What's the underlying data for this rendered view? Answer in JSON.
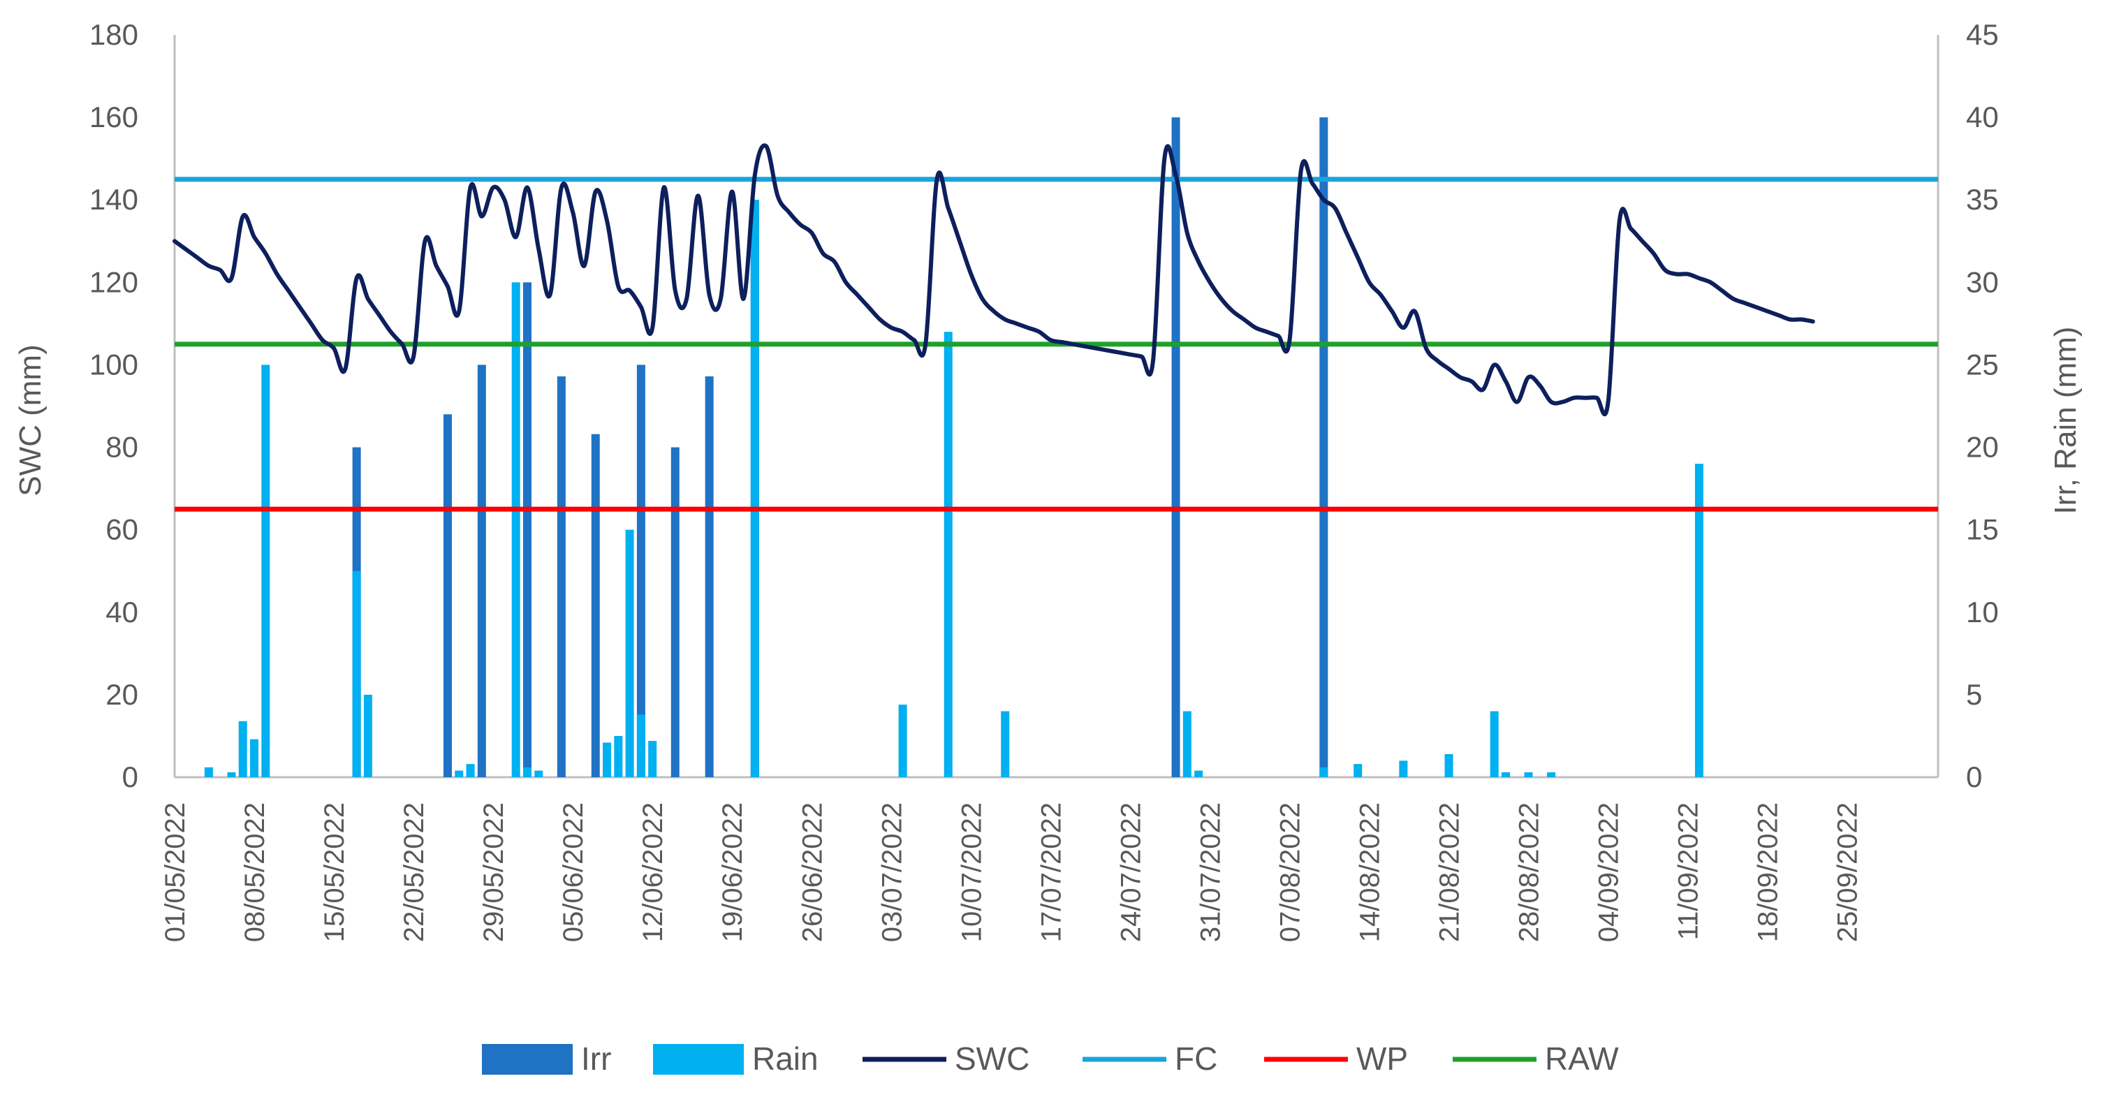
{
  "chart_data": {
    "type": "bar+line",
    "title": "",
    "ylabel_left": "SWC (mm)",
    "ylabel_right": "Irr, Rain (mm)",
    "ylim_left": [
      0,
      180
    ],
    "ylim_right": [
      0,
      45
    ],
    "yticks_left": [
      0,
      20,
      40,
      60,
      80,
      100,
      120,
      140,
      160,
      180
    ],
    "yticks_right": [
      0,
      5,
      10,
      15,
      20,
      25,
      30,
      35,
      40,
      45
    ],
    "x_start": "01/05/2022",
    "x_end": "03/10/2022",
    "xtick_labels": [
      "01/05/2022",
      "08/05/2022",
      "15/05/2022",
      "22/05/2022",
      "29/05/2022",
      "05/06/2022",
      "12/06/2022",
      "19/06/2022",
      "26/06/2022",
      "03/07/2022",
      "10/07/2022",
      "17/07/2022",
      "24/07/2022",
      "31/07/2022",
      "07/08/2022",
      "14/08/2022",
      "21/08/2022",
      "28/08/2022",
      "04/09/2022",
      "11/09/2022",
      "18/09/2022",
      "25/09/2022"
    ],
    "legend_position": "bottom",
    "grid": false,
    "colors": {
      "Irr": "#1f72c4",
      "Rain": "#00b0f0",
      "SWC": "#0d1f5c",
      "FC": "#1aa3dc",
      "WP": "#ff0000",
      "RAW": "#1fa02a",
      "axis": "#bfbfbf",
      "text": "#595959"
    },
    "series": [
      {
        "name": "Irr",
        "type": "bar",
        "axis": "right",
        "points": [
          {
            "x": "17/05/2022",
            "y": 20
          },
          {
            "x": "25/05/2022",
            "y": 22
          },
          {
            "x": "28/05/2022",
            "y": 25
          },
          {
            "x": "01/06/2022",
            "y": 30
          },
          {
            "x": "04/06/2022",
            "y": 24.3
          },
          {
            "x": "07/06/2022",
            "y": 20.8
          },
          {
            "x": "11/06/2022",
            "y": 25
          },
          {
            "x": "14/06/2022",
            "y": 20
          },
          {
            "x": "17/06/2022",
            "y": 24.3
          },
          {
            "x": "21/06/2022",
            "y": 35
          },
          {
            "x": "28/07/2022",
            "y": 40
          },
          {
            "x": "10/08/2022",
            "y": 40
          }
        ]
      },
      {
        "name": "Rain",
        "type": "bar",
        "axis": "right",
        "points": [
          {
            "x": "04/05/2022",
            "y": 0.6
          },
          {
            "x": "06/05/2022",
            "y": 0.3
          },
          {
            "x": "07/05/2022",
            "y": 3.4
          },
          {
            "x": "08/05/2022",
            "y": 2.3
          },
          {
            "x": "09/05/2022",
            "y": 25
          },
          {
            "x": "17/05/2022",
            "y": 12.5
          },
          {
            "x": "18/05/2022",
            "y": 5
          },
          {
            "x": "26/05/2022",
            "y": 0.4
          },
          {
            "x": "27/05/2022",
            "y": 0.8
          },
          {
            "x": "31/05/2022",
            "y": 30
          },
          {
            "x": "01/06/2022",
            "y": 0.6
          },
          {
            "x": "02/06/2022",
            "y": 0.4
          },
          {
            "x": "08/06/2022",
            "y": 2.1
          },
          {
            "x": "09/06/2022",
            "y": 2.5
          },
          {
            "x": "10/06/2022",
            "y": 15
          },
          {
            "x": "11/06/2022",
            "y": 3.8
          },
          {
            "x": "12/06/2022",
            "y": 2.2
          },
          {
            "x": "21/06/2022",
            "y": 35
          },
          {
            "x": "04/07/2022",
            "y": 4.4
          },
          {
            "x": "08/07/2022",
            "y": 27
          },
          {
            "x": "13/07/2022",
            "y": 4
          },
          {
            "x": "29/07/2022",
            "y": 4
          },
          {
            "x": "30/07/2022",
            "y": 0.4
          },
          {
            "x": "10/08/2022",
            "y": 0.6
          },
          {
            "x": "13/08/2022",
            "y": 0.8
          },
          {
            "x": "17/08/2022",
            "y": 1
          },
          {
            "x": "21/08/2022",
            "y": 1.4
          },
          {
            "x": "25/08/2022",
            "y": 4
          },
          {
            "x": "26/08/2022",
            "y": 0.3
          },
          {
            "x": "28/08/2022",
            "y": 0.3
          },
          {
            "x": "30/08/2022",
            "y": 0.3
          },
          {
            "x": "12/09/2022",
            "y": 19
          }
        ]
      },
      {
        "name": "SWC",
        "type": "line",
        "axis": "left",
        "points": [
          {
            "x": "01/05/2022",
            "y": 130
          },
          {
            "x": "02/05/2022",
            "y": 128
          },
          {
            "x": "03/05/2022",
            "y": 126
          },
          {
            "x": "04/05/2022",
            "y": 124
          },
          {
            "x": "05/05/2022",
            "y": 123
          },
          {
            "x": "06/05/2022",
            "y": 121
          },
          {
            "x": "07/05/2022",
            "y": 136
          },
          {
            "x": "08/05/2022",
            "y": 131
          },
          {
            "x": "09/05/2022",
            "y": 127
          },
          {
            "x": "10/05/2022",
            "y": 122
          },
          {
            "x": "11/05/2022",
            "y": 118
          },
          {
            "x": "12/05/2022",
            "y": 114
          },
          {
            "x": "13/05/2022",
            "y": 110
          },
          {
            "x": "14/05/2022",
            "y": 106
          },
          {
            "x": "15/05/2022",
            "y": 104
          },
          {
            "x": "16/05/2022",
            "y": 99
          },
          {
            "x": "17/05/2022",
            "y": 121
          },
          {
            "x": "18/05/2022",
            "y": 116
          },
          {
            "x": "19/05/2022",
            "y": 112
          },
          {
            "x": "20/05/2022",
            "y": 108
          },
          {
            "x": "21/05/2022",
            "y": 105
          },
          {
            "x": "22/05/2022",
            "y": 102
          },
          {
            "x": "23/05/2022",
            "y": 130
          },
          {
            "x": "24/05/2022",
            "y": 124
          },
          {
            "x": "25/05/2022",
            "y": 119
          },
          {
            "x": "26/05/2022",
            "y": 113
          },
          {
            "x": "27/05/2022",
            "y": 143
          },
          {
            "x": "28/05/2022",
            "y": 136
          },
          {
            "x": "29/05/2022",
            "y": 143
          },
          {
            "x": "30/05/2022",
            "y": 140
          },
          {
            "x": "31/05/2022",
            "y": 131
          },
          {
            "x": "01/06/2022",
            "y": 143
          },
          {
            "x": "02/06/2022",
            "y": 128
          },
          {
            "x": "03/06/2022",
            "y": 117
          },
          {
            "x": "04/06/2022",
            "y": 143
          },
          {
            "x": "05/06/2022",
            "y": 137
          },
          {
            "x": "06/06/2022",
            "y": 124
          },
          {
            "x": "07/06/2022",
            "y": 142
          },
          {
            "x": "08/06/2022",
            "y": 135
          },
          {
            "x": "09/06/2022",
            "y": 119
          },
          {
            "x": "10/06/2022",
            "y": 118
          },
          {
            "x": "11/06/2022",
            "y": 114
          },
          {
            "x": "12/06/2022",
            "y": 109
          },
          {
            "x": "13/06/2022",
            "y": 143
          },
          {
            "x": "14/06/2022",
            "y": 118
          },
          {
            "x": "15/06/2022",
            "y": 116
          },
          {
            "x": "16/06/2022",
            "y": 141
          },
          {
            "x": "17/06/2022",
            "y": 117
          },
          {
            "x": "18/06/2022",
            "y": 116
          },
          {
            "x": "19/06/2022",
            "y": 142
          },
          {
            "x": "20/06/2022",
            "y": 116
          },
          {
            "x": "21/06/2022",
            "y": 146
          },
          {
            "x": "22/06/2022",
            "y": 153
          },
          {
            "x": "23/06/2022",
            "y": 141
          },
          {
            "x": "24/06/2022",
            "y": 137
          },
          {
            "x": "25/06/2022",
            "y": 134
          },
          {
            "x": "26/06/2022",
            "y": 132
          },
          {
            "x": "27/06/2022",
            "y": 127
          },
          {
            "x": "28/06/2022",
            "y": 125
          },
          {
            "x": "29/06/2022",
            "y": 120
          },
          {
            "x": "30/06/2022",
            "y": 117
          },
          {
            "x": "01/07/2022",
            "y": 114
          },
          {
            "x": "02/07/2022",
            "y": 111
          },
          {
            "x": "03/07/2022",
            "y": 109
          },
          {
            "x": "04/07/2022",
            "y": 108
          },
          {
            "x": "05/07/2022",
            "y": 106
          },
          {
            "x": "06/07/2022",
            "y": 105
          },
          {
            "x": "07/07/2022",
            "y": 145
          },
          {
            "x": "08/07/2022",
            "y": 138
          },
          {
            "x": "09/07/2022",
            "y": 130
          },
          {
            "x": "10/07/2022",
            "y": 122
          },
          {
            "x": "11/07/2022",
            "y": 116
          },
          {
            "x": "12/07/2022",
            "y": 113
          },
          {
            "x": "13/07/2022",
            "y": 111
          },
          {
            "x": "14/07/2022",
            "y": 110
          },
          {
            "x": "15/07/2022",
            "y": 109
          },
          {
            "x": "16/07/2022",
            "y": 108
          },
          {
            "x": "17/07/2022",
            "y": 106
          },
          {
            "x": "18/07/2022",
            "y": 105.5
          },
          {
            "x": "19/07/2022",
            "y": 105
          },
          {
            "x": "20/07/2022",
            "y": 104.5
          },
          {
            "x": "21/07/2022",
            "y": 104
          },
          {
            "x": "22/07/2022",
            "y": 103.5
          },
          {
            "x": "23/07/2022",
            "y": 103
          },
          {
            "x": "24/07/2022",
            "y": 102.5
          },
          {
            "x": "25/07/2022",
            "y": 102
          },
          {
            "x": "26/07/2022",
            "y": 101
          },
          {
            "x": "27/07/2022",
            "y": 150
          },
          {
            "x": "28/07/2022",
            "y": 146
          },
          {
            "x": "29/07/2022",
            "y": 132
          },
          {
            "x": "30/07/2022",
            "y": 125
          },
          {
            "x": "31/07/2022",
            "y": 120
          },
          {
            "x": "01/08/2022",
            "y": 116
          },
          {
            "x": "02/08/2022",
            "y": 113
          },
          {
            "x": "03/08/2022",
            "y": 111
          },
          {
            "x": "04/08/2022",
            "y": 109
          },
          {
            "x": "05/08/2022",
            "y": 108
          },
          {
            "x": "06/08/2022",
            "y": 107
          },
          {
            "x": "07/08/2022",
            "y": 106
          },
          {
            "x": "08/08/2022",
            "y": 147
          },
          {
            "x": "09/08/2022",
            "y": 144
          },
          {
            "x": "10/08/2022",
            "y": 140
          },
          {
            "x": "11/08/2022",
            "y": 138
          },
          {
            "x": "12/08/2022",
            "y": 132
          },
          {
            "x": "13/08/2022",
            "y": 126
          },
          {
            "x": "14/08/2022",
            "y": 120
          },
          {
            "x": "15/08/2022",
            "y": 117
          },
          {
            "x": "16/08/2022",
            "y": 113
          },
          {
            "x": "17/08/2022",
            "y": 109
          },
          {
            "x": "18/08/2022",
            "y": 113
          },
          {
            "x": "19/08/2022",
            "y": 104
          },
          {
            "x": "20/08/2022",
            "y": 101
          },
          {
            "x": "21/08/2022",
            "y": 99
          },
          {
            "x": "22/08/2022",
            "y": 97
          },
          {
            "x": "23/08/2022",
            "y": 96
          },
          {
            "x": "24/08/2022",
            "y": 94
          },
          {
            "x": "25/08/2022",
            "y": 100
          },
          {
            "x": "26/08/2022",
            "y": 96
          },
          {
            "x": "27/08/2022",
            "y": 91
          },
          {
            "x": "28/08/2022",
            "y": 97
          },
          {
            "x": "29/08/2022",
            "y": 95
          },
          {
            "x": "30/08/2022",
            "y": 91
          },
          {
            "x": "31/08/2022",
            "y": 91
          },
          {
            "x": "01/09/2022",
            "y": 92
          },
          {
            "x": "02/09/2022",
            "y": 92
          },
          {
            "x": "03/09/2022",
            "y": 92
          },
          {
            "x": "04/09/2022",
            "y": 91
          },
          {
            "x": "05/09/2022",
            "y": 135
          },
          {
            "x": "06/09/2022",
            "y": 133
          },
          {
            "x": "07/09/2022",
            "y": 130
          },
          {
            "x": "08/09/2022",
            "y": 127
          },
          {
            "x": "09/09/2022",
            "y": 123
          },
          {
            "x": "10/09/2022",
            "y": 122
          },
          {
            "x": "11/09/2022",
            "y": 122
          },
          {
            "x": "12/09/2022",
            "y": 121
          },
          {
            "x": "13/09/2022",
            "y": 120
          },
          {
            "x": "14/09/2022",
            "y": 118
          },
          {
            "x": "15/09/2022",
            "y": 116
          },
          {
            "x": "16/09/2022",
            "y": 115
          },
          {
            "x": "17/09/2022",
            "y": 114
          },
          {
            "x": "18/09/2022",
            "y": 113
          },
          {
            "x": "19/09/2022",
            "y": 112
          },
          {
            "x": "20/09/2022",
            "y": 111
          },
          {
            "x": "21/09/2022",
            "y": 111
          },
          {
            "x": "22/09/2022",
            "y": 110.5
          }
        ]
      },
      {
        "name": "FC",
        "type": "line",
        "axis": "left",
        "constant": 145
      },
      {
        "name": "WP",
        "type": "line",
        "axis": "left",
        "constant": 65
      },
      {
        "name": "RAW",
        "type": "line",
        "axis": "left",
        "constant": 105
      }
    ],
    "legend": [
      {
        "label": "Irr",
        "kind": "bar",
        "series": "Irr"
      },
      {
        "label": "Rain",
        "kind": "bar",
        "series": "Rain"
      },
      {
        "label": "SWC",
        "kind": "line",
        "series": "SWC"
      },
      {
        "label": "FC",
        "kind": "line",
        "series": "FC"
      },
      {
        "label": "WP",
        "kind": "line",
        "series": "WP"
      },
      {
        "label": "RAW",
        "kind": "line",
        "series": "RAW"
      }
    ]
  }
}
